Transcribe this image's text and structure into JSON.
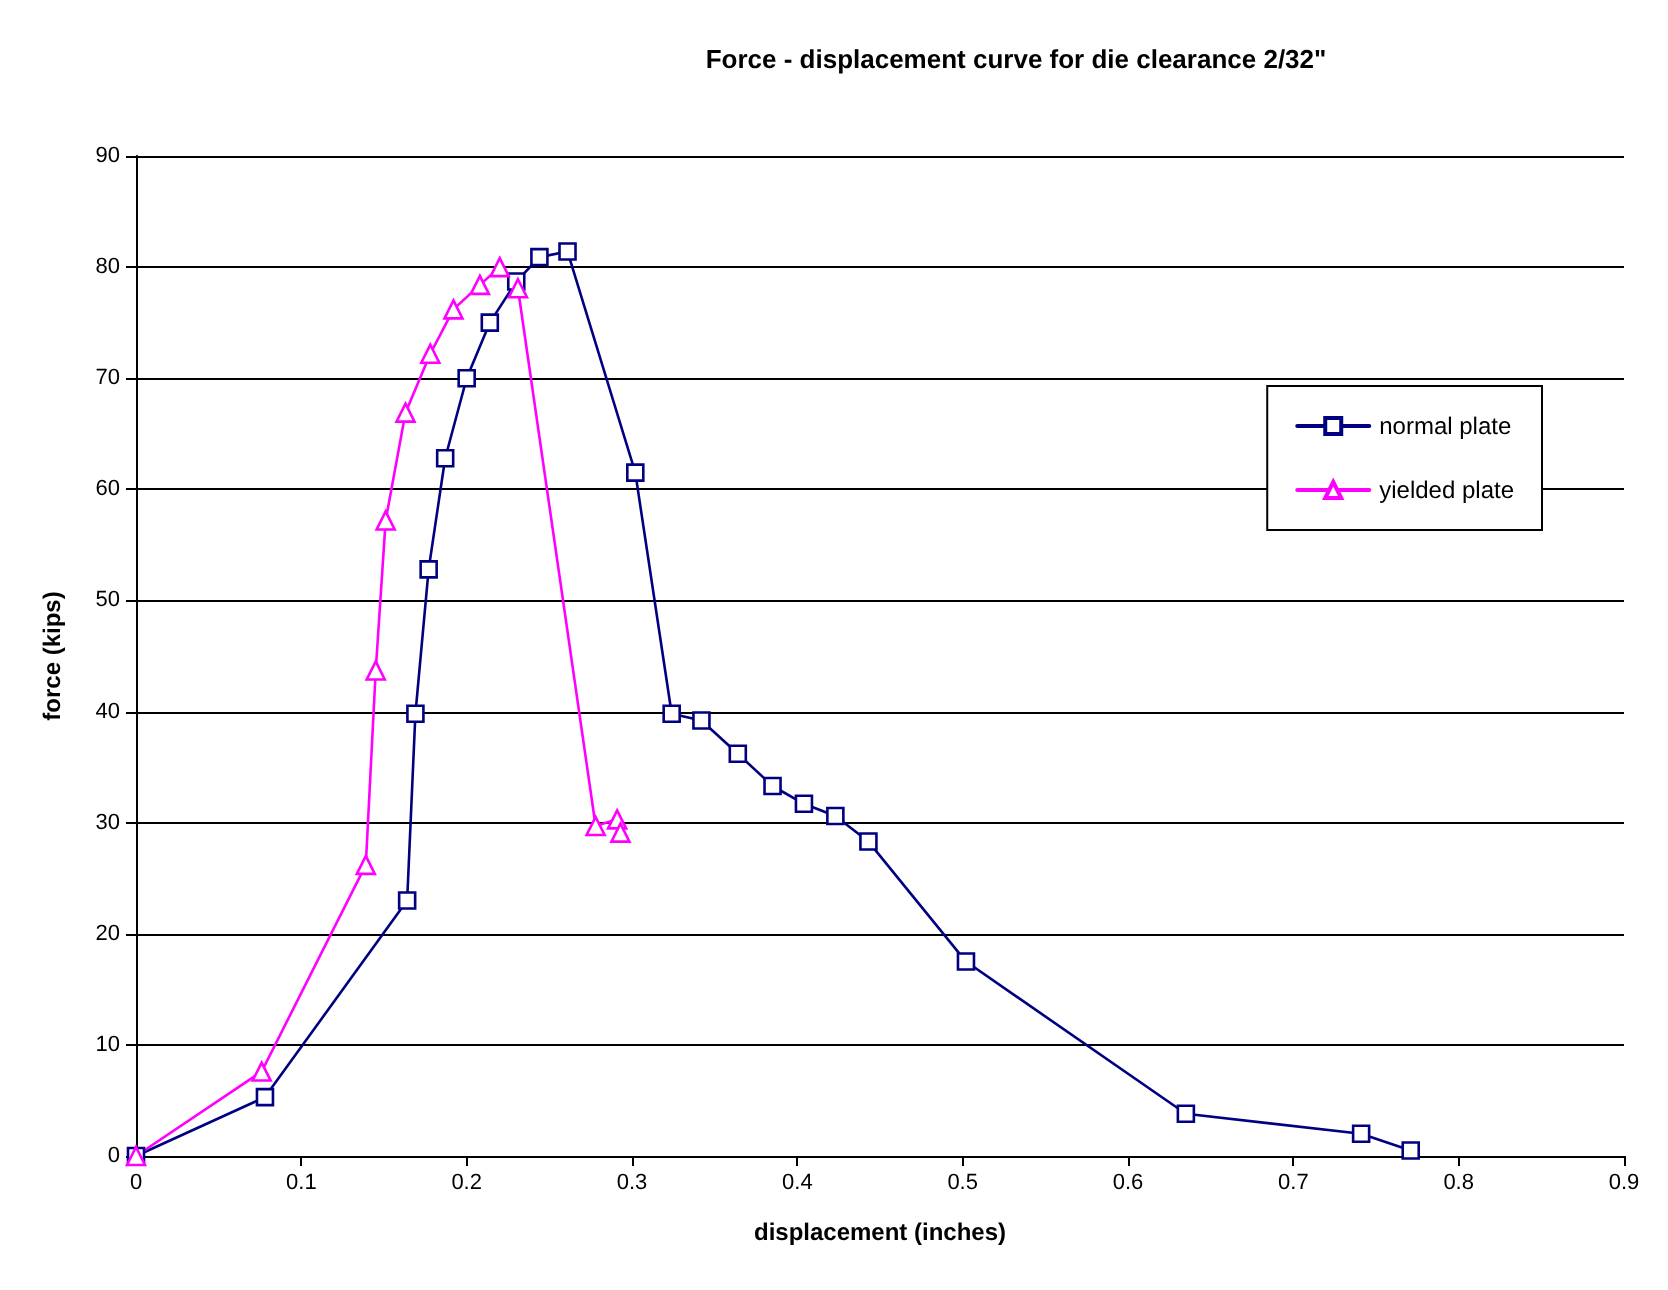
{
  "chart_data": {
    "type": "line",
    "title": "Force - displacement curve for die clearance 2/32\"",
    "xlabel": "displacement (inches)",
    "ylabel": "force (kips)",
    "xlim": [
      0,
      0.9
    ],
    "xticks": [
      0,
      0.1,
      0.2,
      0.3,
      0.4,
      0.5,
      0.6,
      0.7,
      0.8,
      0.9
    ],
    "ylim": [
      0,
      90
    ],
    "yticks": [
      0,
      10,
      20,
      30,
      40,
      50,
      60,
      70,
      80,
      90
    ],
    "grid": "y",
    "legend": "right",
    "series": [
      {
        "name": "normal plate",
        "color": "#000080",
        "marker": "square",
        "x": [
          0,
          0.078,
          0.164,
          0.169,
          0.177,
          0.187,
          0.2,
          0.214,
          0.23,
          0.244,
          0.261,
          0.302,
          0.324,
          0.342,
          0.364,
          0.385,
          0.404,
          0.423,
          0.443,
          0.502,
          0.635,
          0.741,
          0.771
        ],
        "values": [
          0,
          5.3,
          23,
          39.8,
          52.8,
          62.8,
          70,
          75,
          78.7,
          80.9,
          81.4,
          61.5,
          39.8,
          39.2,
          36.2,
          33.3,
          31.7,
          30.6,
          28.3,
          17.5,
          3.8,
          2,
          0.5
        ]
      },
      {
        "name": "yielded plate",
        "color": "#ff00ff",
        "marker": "triangle",
        "x": [
          0,
          0.076,
          0.139,
          0.145,
          0.151,
          0.163,
          0.178,
          0.192,
          0.208,
          0.22,
          0.231,
          0.278,
          0.291,
          0.293
        ],
        "values": [
          0,
          7.6,
          26.2,
          43.7,
          57.2,
          66.9,
          72.2,
          76.2,
          78.4,
          80,
          78.1,
          29.7,
          30.3,
          29.1
        ]
      }
    ]
  }
}
